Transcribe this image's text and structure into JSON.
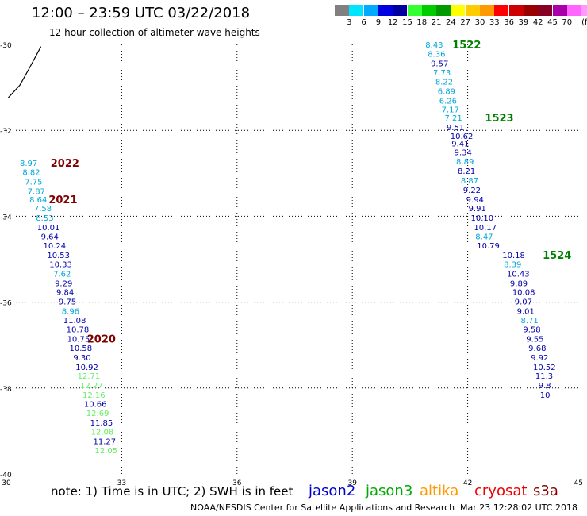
{
  "header": {
    "title": "12:00 – 23:59 UTC 03/22/2018",
    "subtitle": "12 hour collection of altimeter wave heights"
  },
  "legend": {
    "swatches": [
      "#808080",
      "#00e5ff",
      "#00aaff",
      "#0000e0",
      "#0000a0",
      "#33ff33",
      "#00cc00",
      "#009900",
      "#ffff00",
      "#ffcc00",
      "#ff9900",
      "#ff0000",
      "#cc0000",
      "#990000",
      "#880022",
      "#aa00aa",
      "#ff66ff",
      "#ff99ff",
      "#000000"
    ],
    "labels": [
      "3",
      "6",
      "9",
      "12",
      "15",
      "18",
      "21",
      "24",
      "27",
      "30",
      "33",
      "36",
      "39",
      "42",
      "45",
      "70"
    ],
    "unit": "(ft)"
  },
  "map": {
    "lon_range": [
      30,
      45
    ],
    "lat_range": [
      -40,
      -30
    ],
    "lon_ticks": [
      30,
      33,
      36,
      39,
      42,
      45
    ],
    "lat_ticks": [
      -30,
      -32,
      -34,
      -36,
      -38,
      -40
    ],
    "lon_tick_labels": [
      "30",
      "33",
      "36",
      "39",
      "42",
      "45"
    ],
    "lat_tick_labels": [
      "-30",
      "-32",
      "-34",
      "-36",
      "-38",
      "-40"
    ],
    "grid": "dotted",
    "coastline": [
      [
        30.05,
        -31.24
      ],
      [
        30.35,
        -30.95
      ],
      [
        30.6,
        -30.55
      ],
      [
        30.9,
        -30.05
      ]
    ],
    "colors": {
      "jason2": "#0000aa",
      "jason3": "#008800",
      "altika": "#ff9900",
      "cryosat": "#cc0000",
      "s3a": "#800000",
      "swh_light": "#00a8d8",
      "swh_green": "#66ee66",
      "label_dark_red": "#800000",
      "label_green": "#008000"
    }
  },
  "chart_data": {
    "type": "scatter",
    "tracks": [
      {
        "name": "2022",
        "color": "label_dark_red",
        "label_pos": [
          31.15,
          -32.75
        ],
        "points": [
          {
            "lon": 30.35,
            "lat": -32.75,
            "v": "8.97",
            "c": "swh_light"
          },
          {
            "lon": 30.42,
            "lat": -32.97,
            "v": "8.82",
            "c": "swh_light"
          },
          {
            "lon": 30.48,
            "lat": -33.19,
            "v": "7.75",
            "c": "swh_light"
          },
          {
            "lon": 30.55,
            "lat": -33.41,
            "v": "7.87",
            "c": "swh_light"
          }
        ]
      },
      {
        "name": "2021",
        "color": "label_dark_red",
        "label_pos": [
          31.1,
          -33.6
        ],
        "points": [
          {
            "lon": 30.6,
            "lat": -33.6,
            "v": "8.64",
            "c": "swh_light"
          },
          {
            "lon": 30.72,
            "lat": -33.81,
            "v": "7.58",
            "c": "swh_light"
          },
          {
            "lon": 30.77,
            "lat": -34.03,
            "v": "8.53",
            "c": "swh_light"
          },
          {
            "lon": 30.8,
            "lat": -34.25,
            "v": "10.01",
            "c": "jason2"
          },
          {
            "lon": 30.9,
            "lat": -34.46,
            "v": "9.64",
            "c": "jason2"
          },
          {
            "lon": 30.96,
            "lat": -34.68,
            "v": "10.24",
            "c": "jason2"
          },
          {
            "lon": 31.06,
            "lat": -34.9,
            "v": "10.53",
            "c": "jason2"
          },
          {
            "lon": 31.12,
            "lat": -35.11,
            "v": "10.33",
            "c": "jason2"
          },
          {
            "lon": 31.22,
            "lat": -35.33,
            "v": "7.62",
            "c": "swh_light"
          },
          {
            "lon": 31.26,
            "lat": -35.55,
            "v": "9.29",
            "c": "jason2"
          },
          {
            "lon": 31.3,
            "lat": -35.76,
            "v": "9.84",
            "c": "jason2"
          },
          {
            "lon": 31.36,
            "lat": -35.98,
            "v": "9.75",
            "c": "jason2"
          },
          {
            "lon": 31.44,
            "lat": -36.2,
            "v": "8.96",
            "c": "swh_light"
          },
          {
            "lon": 31.48,
            "lat": -36.41,
            "v": "11.08",
            "c": "jason2"
          },
          {
            "lon": 31.56,
            "lat": -36.63,
            "v": "10.78",
            "c": "jason2"
          }
        ]
      },
      {
        "name": "2020",
        "color": "label_dark_red",
        "label_pos": [
          32.1,
          -36.85
        ],
        "points": [
          {
            "lon": 31.58,
            "lat": -36.85,
            "v": "10.75",
            "c": "jason2"
          },
          {
            "lon": 31.64,
            "lat": -37.06,
            "v": "10.58",
            "c": "jason2"
          },
          {
            "lon": 31.74,
            "lat": -37.28,
            "v": "9.30",
            "c": "jason2"
          },
          {
            "lon": 31.8,
            "lat": -37.5,
            "v": "10.92",
            "c": "jason2"
          },
          {
            "lon": 31.85,
            "lat": -37.71,
            "v": "12.71",
            "c": "swh_green"
          },
          {
            "lon": 31.92,
            "lat": -37.93,
            "v": "12.27",
            "c": "swh_green"
          },
          {
            "lon": 31.98,
            "lat": -38.15,
            "v": "12.16",
            "c": "swh_green"
          },
          {
            "lon": 32.02,
            "lat": -38.36,
            "v": "10.66",
            "c": "jason2"
          },
          {
            "lon": 32.08,
            "lat": -38.58,
            "v": "12.69",
            "c": "swh_green"
          },
          {
            "lon": 32.18,
            "lat": -38.8,
            "v": "11.85",
            "c": "jason2"
          },
          {
            "lon": 32.2,
            "lat": -39.01,
            "v": "12.08",
            "c": "swh_green"
          },
          {
            "lon": 32.26,
            "lat": -39.23,
            "v": "11.27",
            "c": "jason2"
          },
          {
            "lon": 32.3,
            "lat": -39.45,
            "v": "12.05",
            "c": "swh_green"
          }
        ]
      },
      {
        "name": "1522",
        "color": "label_green",
        "label_pos": [
          41.6,
          -30.0
        ],
        "points": [
          {
            "lon": 40.9,
            "lat": -30.0,
            "v": "8.43",
            "c": "swh_light"
          },
          {
            "lon": 40.96,
            "lat": -30.21,
            "v": "8.36",
            "c": "swh_light"
          },
          {
            "lon": 41.04,
            "lat": -30.43,
            "v": "9.57",
            "c": "jason2"
          },
          {
            "lon": 41.1,
            "lat": -30.65,
            "v": "7.73",
            "c": "swh_light"
          },
          {
            "lon": 41.16,
            "lat": -30.86,
            "v": "8.22",
            "c": "swh_light"
          },
          {
            "lon": 41.22,
            "lat": -31.08,
            "v": "6.89",
            "c": "swh_light"
          },
          {
            "lon": 41.26,
            "lat": -31.3,
            "v": "6.26",
            "c": "swh_light"
          },
          {
            "lon": 41.32,
            "lat": -31.51,
            "v": "7.17",
            "c": "swh_light"
          }
        ]
      },
      {
        "name": "1523",
        "color": "label_green",
        "label_pos": [
          42.45,
          -31.7
        ],
        "points": [
          {
            "lon": 41.4,
            "lat": -31.7,
            "v": "7.21",
            "c": "swh_light"
          },
          {
            "lon": 41.45,
            "lat": -31.92,
            "v": "9.51",
            "c": "jason2"
          },
          {
            "lon": 41.55,
            "lat": -32.13,
            "v": "10.62",
            "c": "jason2"
          },
          {
            "lon": 41.58,
            "lat": -32.3,
            "v": "9.41",
            "c": "jason2"
          },
          {
            "lon": 41.65,
            "lat": -32.5,
            "v": "9.34",
            "c": "jason2"
          },
          {
            "lon": 41.7,
            "lat": -32.72,
            "v": "8.89",
            "c": "swh_light"
          },
          {
            "lon": 41.74,
            "lat": -32.94,
            "v": "8.21",
            "c": "jason2"
          },
          {
            "lon": 41.82,
            "lat": -33.16,
            "v": "8.87",
            "c": "swh_light"
          },
          {
            "lon": 41.88,
            "lat": -33.38,
            "v": "9.22",
            "c": "jason2"
          },
          {
            "lon": 41.96,
            "lat": -33.6,
            "v": "9.94",
            "c": "jason2"
          },
          {
            "lon": 42.02,
            "lat": -33.81,
            "v": "9.91",
            "c": "jason2"
          },
          {
            "lon": 42.08,
            "lat": -34.03,
            "v": "10.10",
            "c": "jason2"
          },
          {
            "lon": 42.16,
            "lat": -34.25,
            "v": "10.17",
            "c": "jason2"
          },
          {
            "lon": 42.2,
            "lat": -34.46,
            "v": "8.47",
            "c": "swh_light"
          },
          {
            "lon": 42.24,
            "lat": -34.68,
            "v": "10.79",
            "c": "jason2"
          }
        ]
      },
      {
        "name": "1524",
        "color": "label_green",
        "label_pos": [
          43.95,
          -34.9
        ],
        "points": [
          {
            "lon": 42.9,
            "lat": -34.9,
            "v": "10.18",
            "c": "jason2"
          },
          {
            "lon": 42.94,
            "lat": -35.11,
            "v": "8.39",
            "c": "swh_light"
          },
          {
            "lon": 43.02,
            "lat": -35.33,
            "v": "10.43",
            "c": "jason2"
          },
          {
            "lon": 43.1,
            "lat": -35.55,
            "v": "9.89",
            "c": "jason2"
          },
          {
            "lon": 43.16,
            "lat": -35.76,
            "v": "10.08",
            "c": "jason2"
          },
          {
            "lon": 43.22,
            "lat": -35.98,
            "v": "9.07",
            "c": "jason2"
          },
          {
            "lon": 43.28,
            "lat": -36.2,
            "v": "9.01",
            "c": "jason2"
          },
          {
            "lon": 43.38,
            "lat": -36.41,
            "v": "8.71",
            "c": "swh_light"
          },
          {
            "lon": 43.44,
            "lat": -36.63,
            "v": "9.58",
            "c": "jason2"
          },
          {
            "lon": 43.52,
            "lat": -36.85,
            "v": "9.55",
            "c": "jason2"
          },
          {
            "lon": 43.58,
            "lat": -37.06,
            "v": "9.68",
            "c": "jason2"
          },
          {
            "lon": 43.64,
            "lat": -37.28,
            "v": "9.92",
            "c": "jason2"
          },
          {
            "lon": 43.7,
            "lat": -37.5,
            "v": "10.52",
            "c": "jason2"
          },
          {
            "lon": 43.76,
            "lat": -37.71,
            "v": "11.3",
            "c": "jason2"
          },
          {
            "lon": 43.84,
            "lat": -37.93,
            "v": "9.8",
            "c": "jason2"
          },
          {
            "lon": 43.88,
            "lat": -38.15,
            "v": "10",
            "c": "jason2"
          }
        ]
      }
    ]
  },
  "footer": {
    "note": "note:  1) Time is in UTC;  2) SWH is in feet",
    "satellites": [
      "jason2",
      "jason3",
      "altika",
      "cryosat",
      "s3a"
    ],
    "credit": "NOAA/NESDIS Center for Satellite Applications and Research",
    "timestamp": "Mar 23 12:28:02 UTC 2018"
  }
}
